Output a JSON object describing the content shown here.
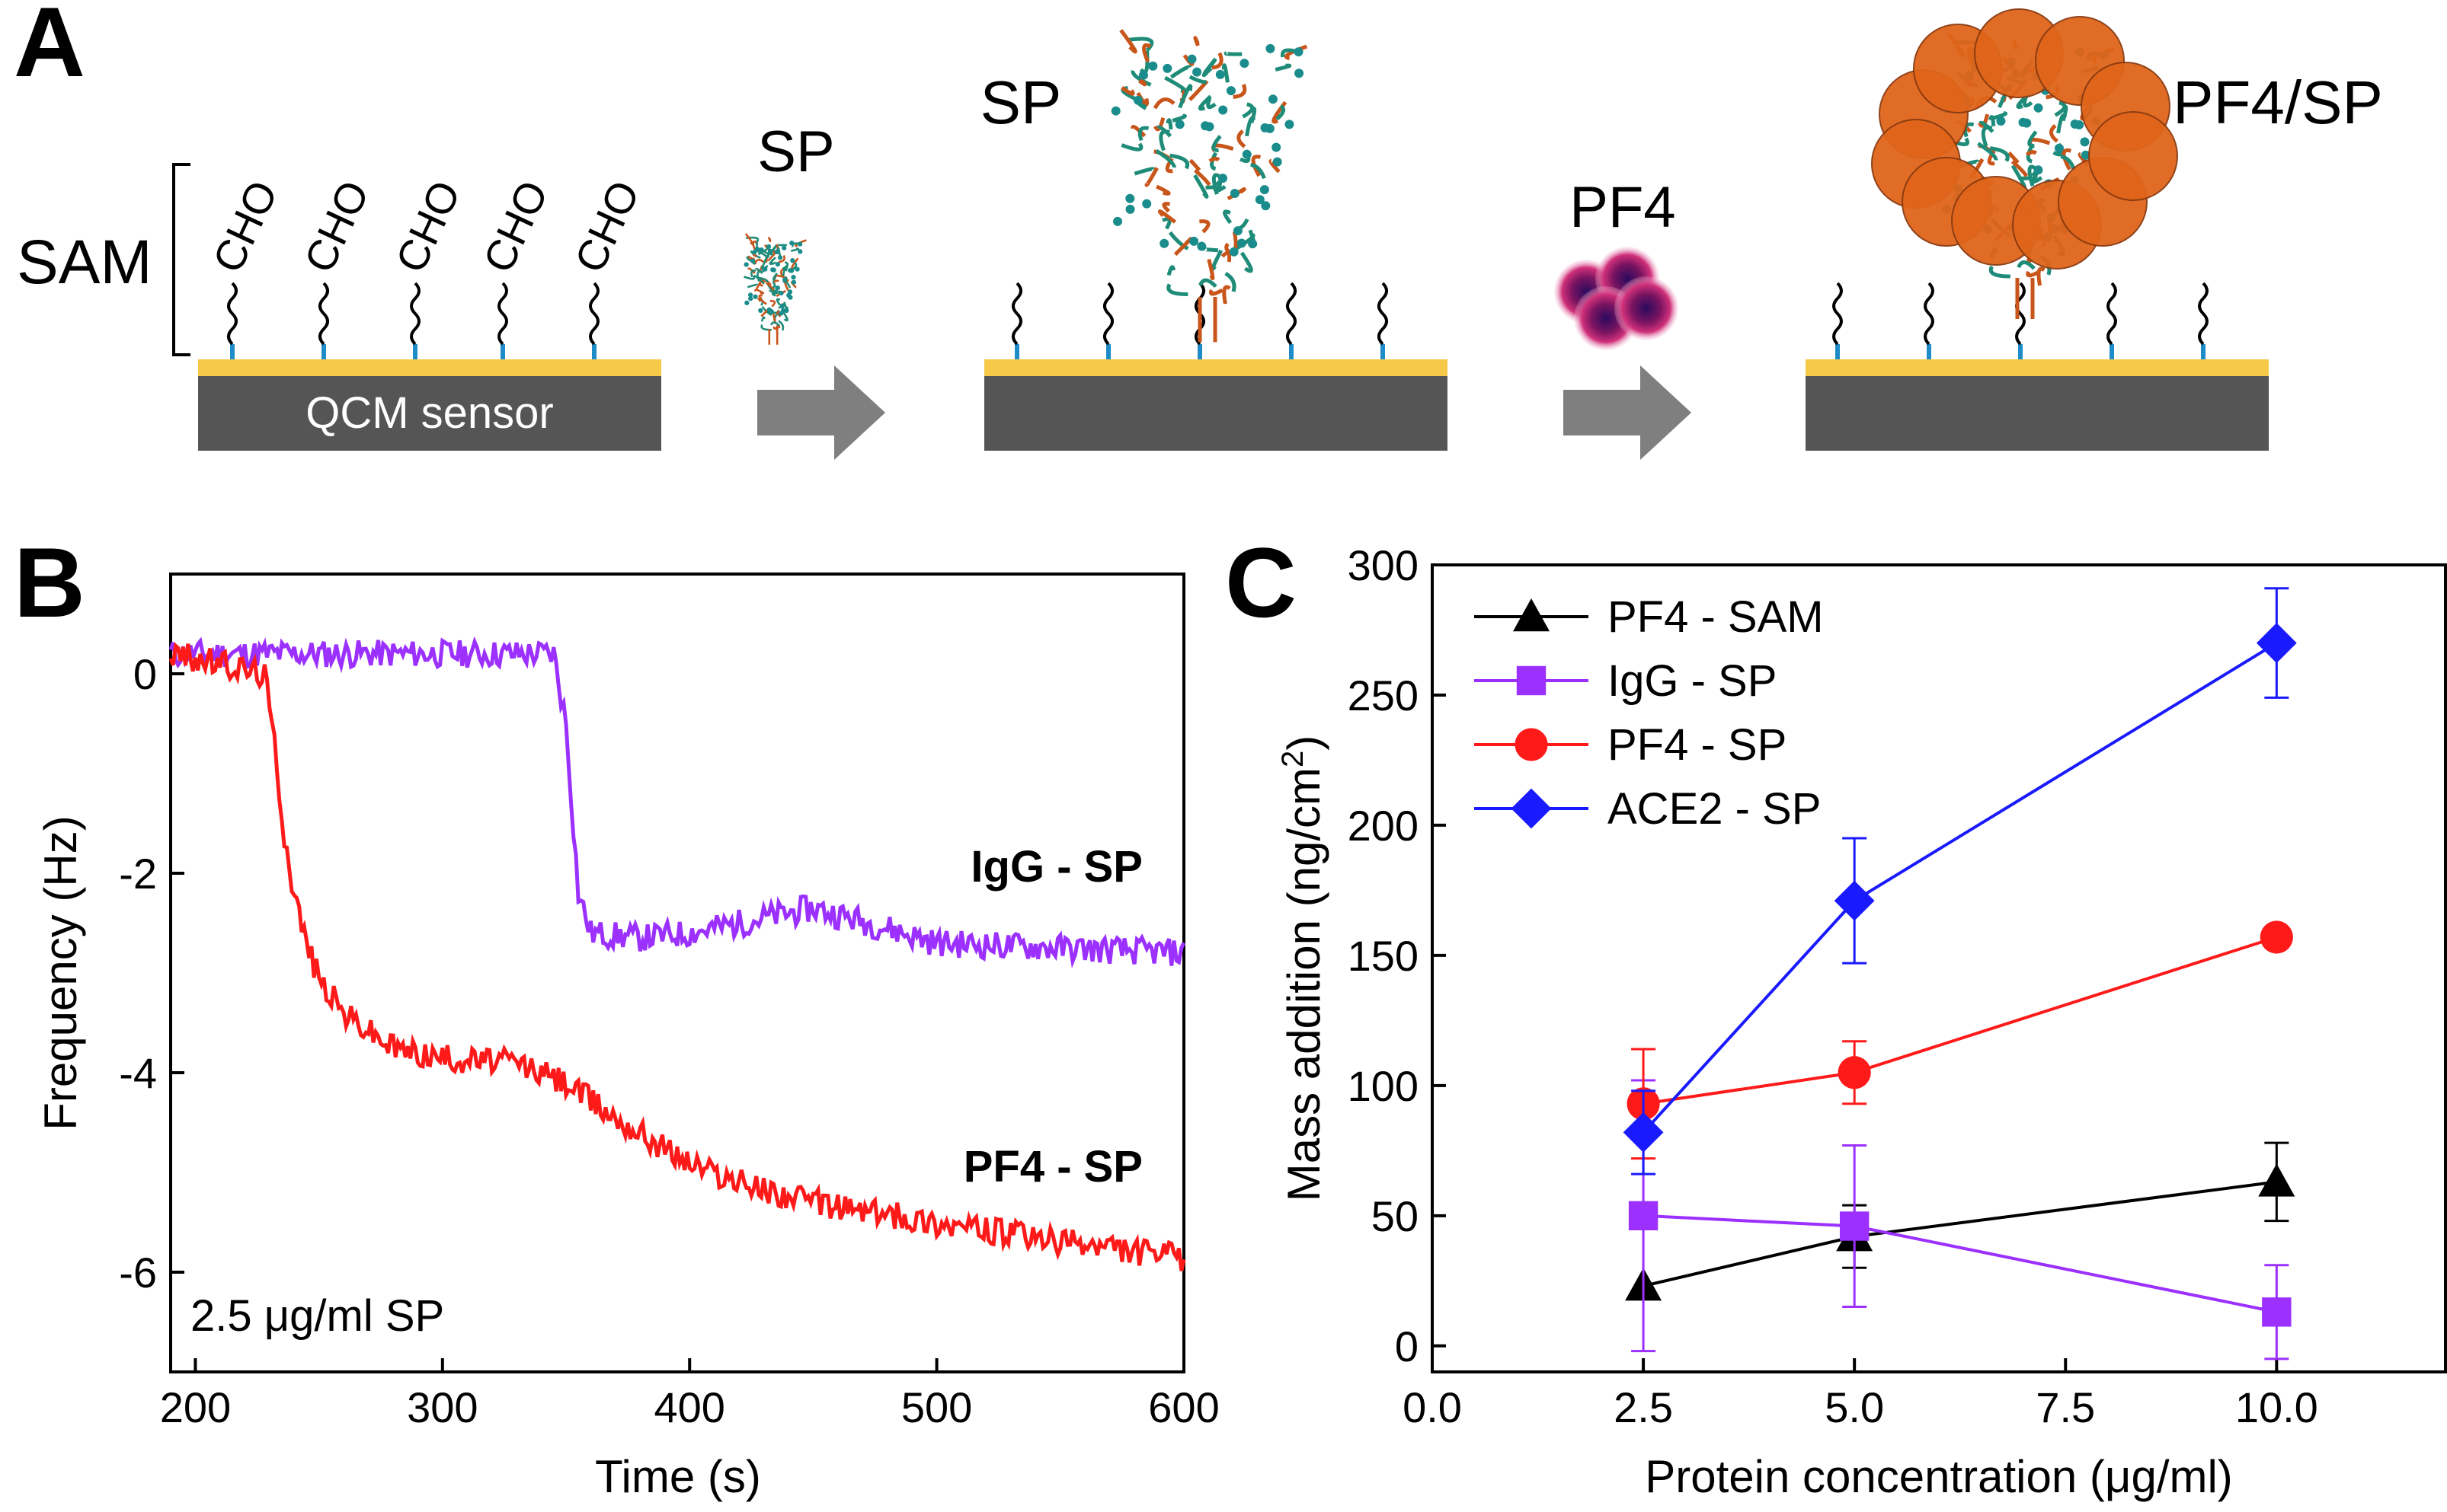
{
  "panel_labels": {
    "a": "A",
    "b": "B",
    "c": "C"
  },
  "schematic": {
    "sam_label": "SAM",
    "cho_label": "CHO",
    "sensor_label": "QCM sensor",
    "sp_label": "SP",
    "sp_bound_label": "SP",
    "pf4_label": "PF4",
    "complex_label": "PF4/SP",
    "colors": {
      "gold": "#F7C948",
      "sensor": "#555555",
      "arrow": "#7F7F7F",
      "pf4": "#E0651A",
      "spike_green": "#1E8C78",
      "spike_orange": "#C8551A"
    }
  },
  "chart_data": [
    {
      "type": "line",
      "title": "",
      "xlabel": "Time (s)",
      "ylabel": "Frequency (Hz)",
      "xlim": [
        190,
        600
      ],
      "ylim": [
        -7,
        1
      ],
      "xticks": [
        200,
        300,
        400,
        500,
        600
      ],
      "yticks": [
        0,
        -2,
        -4,
        -6
      ],
      "annotation": "2.5 μg/ml SP",
      "series": [
        {
          "name": "IgG - SP",
          "color": "#9B30FF",
          "x": [
            190,
            250,
            300,
            345,
            350,
            355,
            360,
            380,
            400,
            420,
            450,
            480,
            500,
            550,
            600
          ],
          "y": [
            0.2,
            0.2,
            0.2,
            0.2,
            -0.5,
            -2.2,
            -2.6,
            -2.65,
            -2.6,
            -2.5,
            -2.35,
            -2.55,
            -2.7,
            -2.75,
            -2.8
          ]
        },
        {
          "name": "PF4 - SP",
          "color": "#FF1A1A",
          "x": [
            190,
            210,
            228,
            232,
            236,
            240,
            245,
            250,
            260,
            280,
            300,
            330,
            350,
            370,
            400,
            420,
            450,
            500,
            550,
            600
          ],
          "y": [
            0.2,
            0.1,
            0.0,
            -0.7,
            -1.6,
            -2.2,
            -2.7,
            -3.05,
            -3.4,
            -3.75,
            -3.85,
            -3.9,
            -4.1,
            -4.45,
            -4.9,
            -5.1,
            -5.3,
            -5.5,
            -5.7,
            -5.85
          ]
        }
      ]
    },
    {
      "type": "line",
      "title": "",
      "xlabel": "Protein concentration (μg/ml)",
      "ylabel": "Mass addition (ng/cm²)",
      "xlim": [
        0,
        12
      ],
      "ylim": [
        -10,
        300
      ],
      "xticks": [
        "0.0",
        "2.5",
        "5.0",
        "7.5",
        "10.0"
      ],
      "yticks": [
        0,
        50,
        100,
        150,
        200,
        250,
        300
      ],
      "legend_position": "top-left",
      "x": [
        2.5,
        5.0,
        10.0
      ],
      "series": [
        {
          "name": "PF4 - SAM",
          "color": "#000000",
          "marker": "triangle",
          "values": [
            23,
            42,
            63
          ],
          "err": [
            0,
            12,
            15
          ]
        },
        {
          "name": "IgG - SP",
          "color": "#9B30FF",
          "marker": "square",
          "values": [
            50,
            46,
            13
          ],
          "err": [
            52,
            31,
            18
          ]
        },
        {
          "name": "PF4 - SP",
          "color": "#FF1A1A",
          "marker": "circle",
          "values": [
            93,
            105,
            157
          ],
          "err": [
            21,
            12,
            0
          ]
        },
        {
          "name": "ACE2 - SP",
          "color": "#1A1AFF",
          "marker": "diamond",
          "values": [
            82,
            171,
            270
          ],
          "err": [
            16,
            24,
            21
          ]
        }
      ]
    }
  ]
}
